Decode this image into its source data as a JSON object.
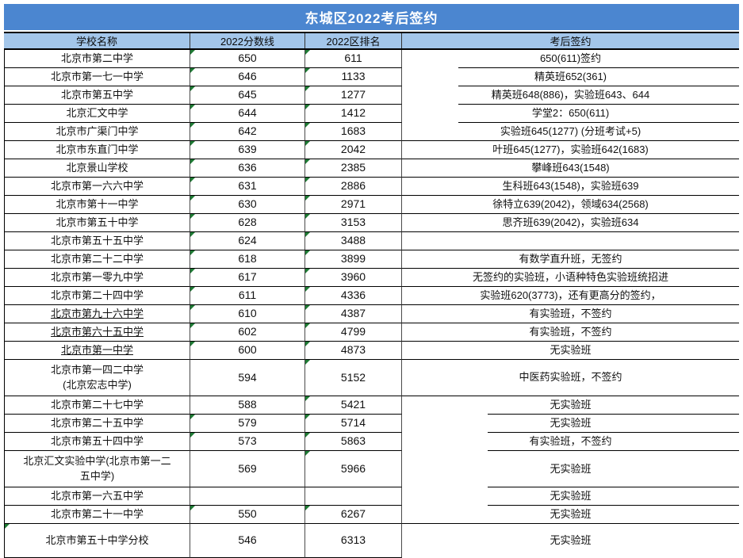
{
  "title": "东城区2022考后签约",
  "columns": [
    "学校名称",
    "2022分数线",
    "2022区排名",
    "考后签约"
  ],
  "colors": {
    "title_bg": "#4B86D0",
    "title_text": "#FFFFFF",
    "header_bg": "#A3C6EA",
    "border": "#000000",
    "error_triangle_green": "#1E7B34"
  },
  "rows": [
    {
      "school": "北京市第二中学",
      "score": "650",
      "rank": "611",
      "note": "650(611)签约",
      "error_indicators": [
        "score",
        "rank"
      ],
      "note_divider": "indented-near",
      "row_height": "normal",
      "school_underlined": false
    },
    {
      "school": "北京市第一七一中学",
      "score": "646",
      "rank": "1133",
      "note": "精英班652(361)",
      "error_indicators": [
        "score",
        "rank"
      ],
      "note_divider": "indented-near",
      "row_height": "normal",
      "school_underlined": false
    },
    {
      "school": "北京市第五中学",
      "score": "645",
      "rank": "1277",
      "note": "精英班648(886)，实验班643、644",
      "error_indicators": [
        "score",
        "rank"
      ],
      "note_divider": "indented-near",
      "row_height": "normal",
      "school_underlined": false
    },
    {
      "school": "北京汇文中学",
      "score": "644",
      "rank": "1412",
      "note": "学堂2：650(611)",
      "error_indicators": [
        "score",
        "rank"
      ],
      "note_divider": "indented-near",
      "row_height": "normal",
      "school_underlined": false
    },
    {
      "school": "北京市广渠门中学",
      "score": "642",
      "rank": "1683",
      "note": "实验班645(1277) (分班考试+5)",
      "error_indicators": [
        "score",
        "rank"
      ],
      "note_divider": "full",
      "row_height": "normal",
      "school_underlined": false
    },
    {
      "school": "北京市东直门中学",
      "score": "639",
      "rank": "2042",
      "note": "叶班645(1277)，实验班642(1683)",
      "error_indicators": [
        "score",
        "rank"
      ],
      "note_divider": "full",
      "row_height": "normal",
      "school_underlined": false
    },
    {
      "school": "北京景山学校",
      "score": "636",
      "rank": "2385",
      "note": "攀峰班643(1548)",
      "error_indicators": [
        "score",
        "rank"
      ],
      "note_divider": "full",
      "row_height": "normal",
      "school_underlined": false
    },
    {
      "school": "北京市第一六六中学",
      "score": "631",
      "rank": "2886",
      "note": "生科班643(1548)，实验班639",
      "error_indicators": [
        "score",
        "rank"
      ],
      "note_divider": "full",
      "row_height": "normal",
      "school_underlined": false
    },
    {
      "school": "北京市第十一中学",
      "score": "630",
      "rank": "2971",
      "note": "徐特立639(2042)，领域634(2568)",
      "error_indicators": [
        "score",
        "rank"
      ],
      "note_divider": "full",
      "row_height": "normal",
      "school_underlined": false
    },
    {
      "school": "北京市第五十中学",
      "score": "628",
      "rank": "3153",
      "note": "思齐班639(2042)，实验班634",
      "error_indicators": [
        "score",
        "rank"
      ],
      "note_divider": "full",
      "row_height": "normal",
      "school_underlined": false
    },
    {
      "school": "北京市第五十五中学",
      "score": "624",
      "rank": "3488",
      "note": "",
      "error_indicators": [
        "score",
        "rank"
      ],
      "note_divider": "full",
      "row_height": "normal",
      "school_underlined": false
    },
    {
      "school": "北京市第二十二中学",
      "score": "618",
      "rank": "3899",
      "note": "有数学直升班，无签约",
      "error_indicators": [
        "score",
        "rank"
      ],
      "note_divider": "full",
      "row_height": "normal",
      "school_underlined": false
    },
    {
      "school": "北京市第一零九中学",
      "score": "617",
      "rank": "3960",
      "note": "无签约的实验班，小语种特色实验班统招进",
      "error_indicators": [
        "score",
        "rank"
      ],
      "note_divider": "full",
      "row_height": "normal",
      "school_underlined": false
    },
    {
      "school": "北京市第二十四中学",
      "score": "611",
      "rank": "4336",
      "note": "实验班620(3773)，还有更高分的签约，",
      "error_indicators": [
        "score",
        "rank"
      ],
      "note_divider": "full",
      "row_height": "normal",
      "school_underlined": false
    },
    {
      "school": "北京市第九十六中学",
      "score": "610",
      "rank": "4387",
      "note": "有实验班，不签约",
      "error_indicators": [
        "score",
        "rank"
      ],
      "note_divider": "full",
      "row_height": "normal",
      "school_underlined": true
    },
    {
      "school": "北京市第六十五中学",
      "score": "602",
      "rank": "4799",
      "note": "有实验班，不签约",
      "error_indicators": [
        "score",
        "rank"
      ],
      "note_divider": "full",
      "row_height": "normal",
      "school_underlined": true
    },
    {
      "school": "北京市第一中学",
      "score": "600",
      "rank": "4873",
      "note": "无实验班",
      "error_indicators": [
        "score",
        "rank"
      ],
      "note_divider": "full",
      "row_height": "normal",
      "school_underlined": true
    },
    {
      "school": "北京市第一四二中学\n(北京宏志中学)",
      "score": "594",
      "rank": "5152",
      "note": "中医药实验班，不签约",
      "error_indicators": [
        "rank"
      ],
      "note_divider": "full",
      "row_height": "double",
      "school_underlined": false
    },
    {
      "school": "北京市第二十七中学",
      "score": "588",
      "rank": "5421",
      "note": "无实验班",
      "error_indicators": [
        "rank"
      ],
      "note_divider": "indented-far",
      "row_height": "normal",
      "school_underlined": false
    },
    {
      "school": "北京市第二十五中学",
      "score": "579",
      "rank": "5714",
      "note": "无实验班",
      "error_indicators": [
        "score",
        "rank"
      ],
      "note_divider": "indented-far",
      "row_height": "normal",
      "school_underlined": false
    },
    {
      "school": "北京市第五十四中学",
      "score": "573",
      "rank": "5863",
      "note": "有实验班，不签约",
      "error_indicators": [
        "score",
        "rank"
      ],
      "note_divider": "indented-far",
      "row_height": "normal",
      "school_underlined": false
    },
    {
      "school": "北京汇文实验中学(北京市第一二\n五中学)",
      "score": "569",
      "rank": "5966",
      "note": "无实验班",
      "error_indicators": [
        "rank"
      ],
      "note_divider": "indented-far",
      "row_height": "double",
      "school_underlined": false
    },
    {
      "school": "北京市第一六五中学",
      "score": "",
      "rank": "",
      "note": "无实验班",
      "error_indicators": [],
      "note_divider": "indented-far",
      "row_height": "normal",
      "school_underlined": false
    },
    {
      "school": "北京市第二十一中学",
      "score": "550",
      "rank": "6267",
      "note": "无实验班",
      "error_indicators": [
        "score",
        "rank"
      ],
      "note_divider": "full",
      "row_height": "normal",
      "school_underlined": false
    },
    {
      "school": "北京市第五十中学分校",
      "score": "546",
      "rank": "6313",
      "note": "无实验班",
      "error_indicators": [
        "school"
      ],
      "note_divider": "none",
      "row_height": "tall",
      "school_underlined": false
    }
  ]
}
